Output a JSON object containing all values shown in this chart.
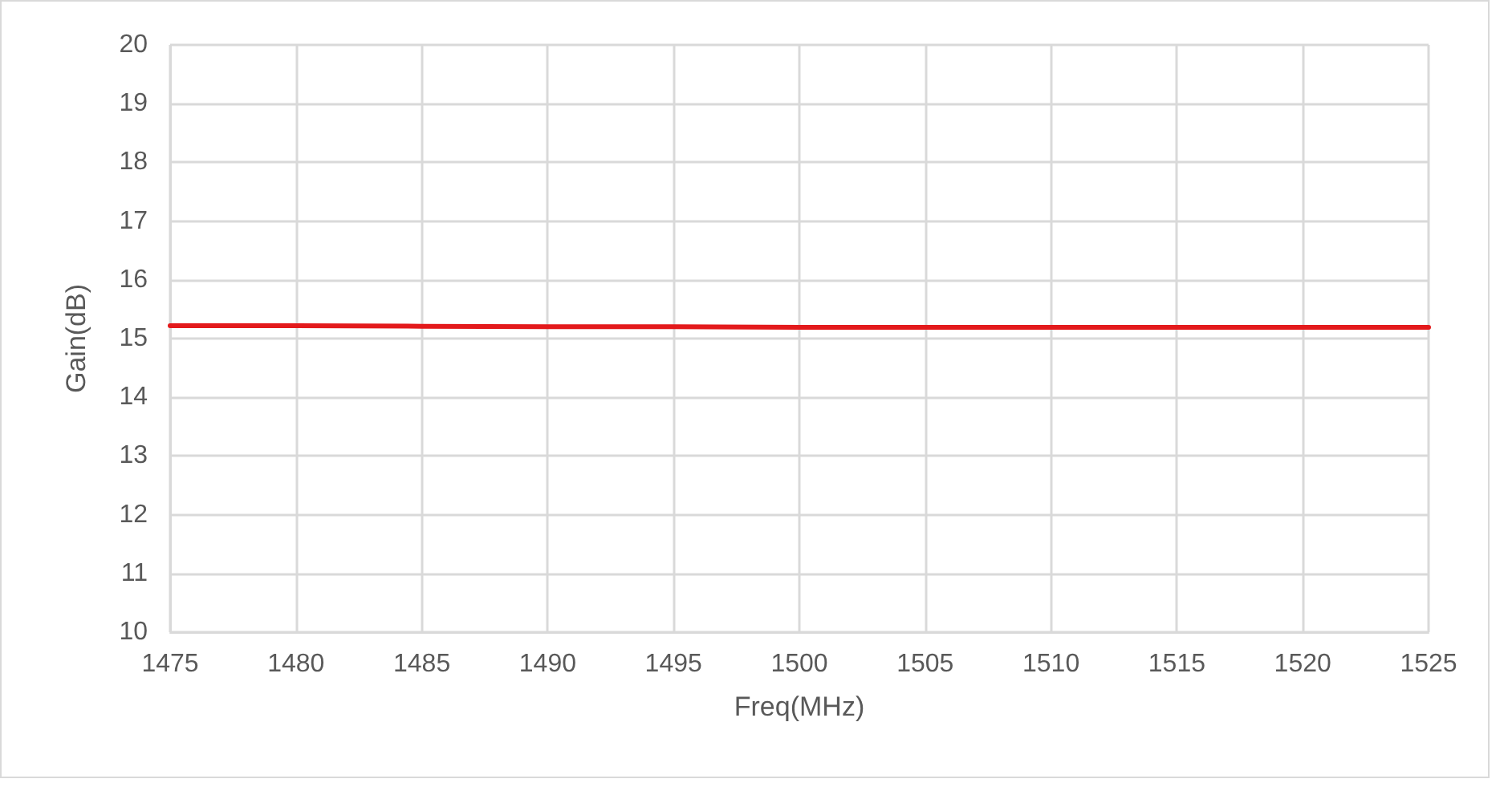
{
  "chart_data": {
    "type": "line",
    "xlabel": "Freq(MHz)",
    "ylabel": "Gain(dB)",
    "x": [
      1475,
      1480,
      1485,
      1490,
      1495,
      1500,
      1505,
      1510,
      1515,
      1520,
      1525
    ],
    "series": [
      {
        "color": "#e31a1c",
        "values": [
          15.22,
          15.22,
          15.21,
          15.2,
          15.2,
          15.19,
          15.19,
          15.19,
          15.19,
          15.19,
          15.19
        ]
      }
    ],
    "xlim": [
      1475,
      1525
    ],
    "xticks": [
      1475,
      1480,
      1485,
      1490,
      1495,
      1500,
      1505,
      1510,
      1515,
      1520,
      1525
    ],
    "ylim": [
      10,
      20
    ],
    "yticks": [
      10,
      11,
      12,
      13,
      14,
      15,
      16,
      17,
      18,
      19,
      20
    ],
    "grid": true,
    "marker": "none",
    "line_style": "solid"
  }
}
